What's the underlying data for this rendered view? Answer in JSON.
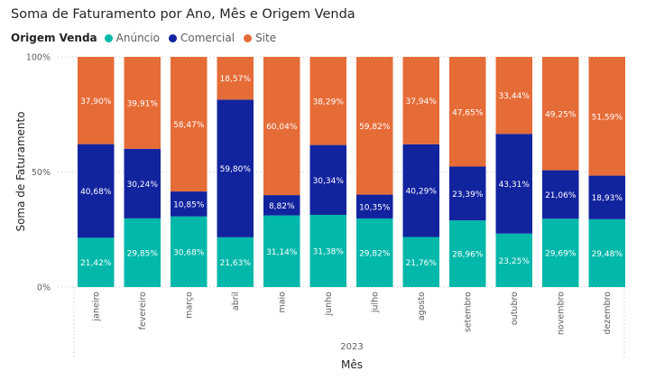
{
  "chart_data": {
    "type": "bar",
    "stacked": "100%",
    "title": "Soma de Faturamento por Ano, Mês e Origem Venda",
    "legend_title": "Origem Venda",
    "legend_position": "top-left",
    "xlabel": "Mês",
    "x_group_label": "2023",
    "ylabel": "Soma de Faturamento",
    "ylim": [
      0,
      100
    ],
    "yticks": [
      "0%",
      "50%",
      "100%"
    ],
    "categories": [
      "janeiro",
      "fevereiro",
      "março",
      "abril",
      "maio",
      "junho",
      "julho",
      "agosto",
      "setembro",
      "outubro",
      "novembro",
      "dezembro"
    ],
    "series": [
      {
        "name": "Anúncio",
        "color": "#01B8AA",
        "values": [
          21.42,
          29.85,
          30.68,
          21.63,
          31.14,
          31.38,
          29.82,
          21.76,
          28.96,
          23.25,
          29.69,
          29.48
        ],
        "labels": [
          "21,42%",
          "29,85%",
          "30,68%",
          "21,63%",
          "31,14%",
          "31,38%",
          "29,82%",
          "21,76%",
          "28,96%",
          "23,25%",
          "29,69%",
          "29,48%"
        ]
      },
      {
        "name": "Comercial",
        "color": "#12239E",
        "values": [
          40.68,
          30.24,
          10.85,
          59.8,
          8.82,
          30.34,
          10.35,
          40.29,
          23.39,
          43.31,
          21.06,
          18.93
        ],
        "labels": [
          "40,68%",
          "30,24%",
          "10,85%",
          "59,80%",
          "8,82%",
          "30,34%",
          "10,35%",
          "40,29%",
          "23,39%",
          "43,31%",
          "21,06%",
          "18,93%"
        ]
      },
      {
        "name": "Site",
        "color": "#E66C37",
        "values": [
          37.9,
          39.91,
          58.47,
          18.57,
          60.04,
          38.29,
          59.82,
          37.94,
          47.65,
          33.44,
          49.25,
          51.59
        ],
        "labels": [
          "37,90%",
          "39,91%",
          "58,47%",
          "18,57%",
          "60,04%",
          "38,29%",
          "59,82%",
          "37,94%",
          "47,65%",
          "33,44%",
          "49,25%",
          "51,59%"
        ]
      }
    ]
  }
}
